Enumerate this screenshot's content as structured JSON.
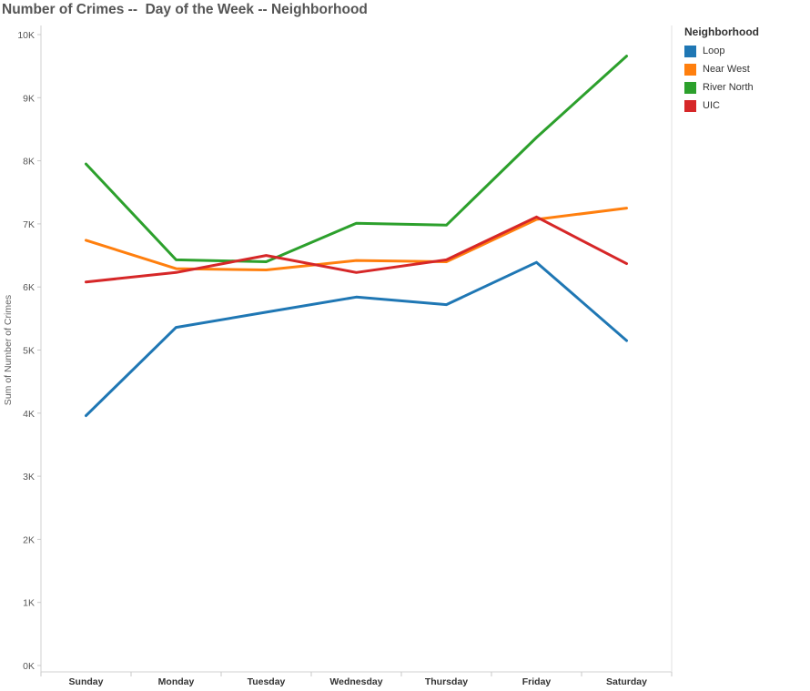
{
  "chart_data": {
    "type": "line",
    "title": "Number of Crimes --  Day of the Week -- Neighborhood",
    "xlabel": "",
    "ylabel": "Sum of Number of Crimes",
    "categories": [
      "Sunday",
      "Monday",
      "Tuesday",
      "Wednesday",
      "Thursday",
      "Friday",
      "Saturday"
    ],
    "ylim": [
      0,
      10000
    ],
    "yticks": [
      {
        "value": 0,
        "label": "0K"
      },
      {
        "value": 1000,
        "label": "1K"
      },
      {
        "value": 2000,
        "label": "2K"
      },
      {
        "value": 3000,
        "label": "3K"
      },
      {
        "value": 4000,
        "label": "4K"
      },
      {
        "value": 5000,
        "label": "5K"
      },
      {
        "value": 6000,
        "label": "6K"
      },
      {
        "value": 7000,
        "label": "7K"
      },
      {
        "value": 8000,
        "label": "8K"
      },
      {
        "value": 9000,
        "label": "9K"
      },
      {
        "value": 10000,
        "label": "10K"
      }
    ],
    "grid": false,
    "legend_title": "Neighborhood",
    "legend_position": "right",
    "series": [
      {
        "name": "Loop",
        "color": "#1f77b4",
        "values": [
          3960,
          5360,
          5600,
          5840,
          5720,
          6390,
          5150
        ]
      },
      {
        "name": "Near West",
        "color": "#ff7f0e",
        "values": [
          6740,
          6290,
          6270,
          6420,
          6400,
          7070,
          7250
        ]
      },
      {
        "name": "River North",
        "color": "#2ca02c",
        "values": [
          7950,
          6430,
          6400,
          7010,
          6980,
          8370,
          9660
        ]
      },
      {
        "name": "UIC",
        "color": "#d62728",
        "values": [
          6080,
          6230,
          6500,
          6230,
          6430,
          7110,
          6370
        ]
      }
    ]
  }
}
